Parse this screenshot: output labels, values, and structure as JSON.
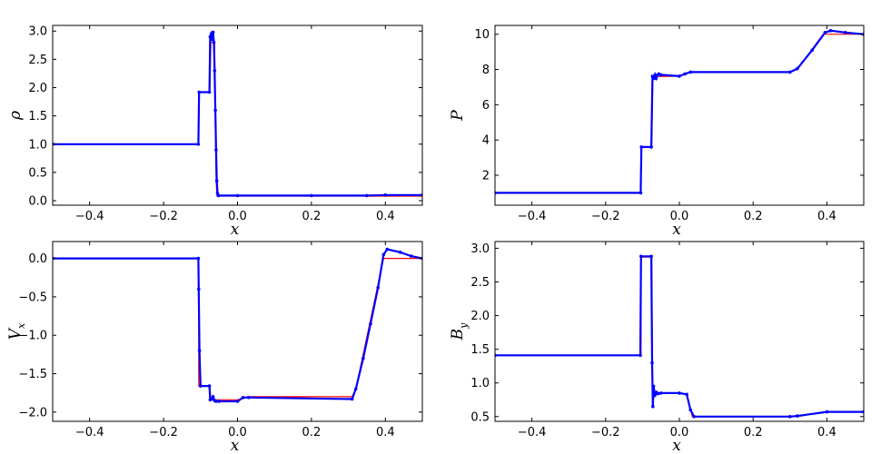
{
  "figure": {
    "background": "#ffffff"
  },
  "chart_data": [
    {
      "type": "line",
      "title": "",
      "xlabel": "x",
      "ylabel": "ρ",
      "ylabel_sub": "",
      "xlim": [
        -0.5,
        0.5
      ],
      "ylim": [
        -0.08,
        3.1
      ],
      "xticks": [
        -0.4,
        -0.2,
        0.0,
        0.2,
        0.4
      ],
      "xtick_labels": [
        "−0.4",
        "−0.2",
        "0.0",
        "0.2",
        "0.4"
      ],
      "yticks": [
        0.0,
        0.5,
        1.0,
        1.5,
        2.0,
        2.5,
        3.0
      ],
      "ytick_labels": [
        "0.0",
        "0.5",
        "1.0",
        "1.5",
        "2.0",
        "2.5",
        "3.0"
      ],
      "grid": false,
      "series": [
        {
          "color": "#ff0000",
          "style": "line",
          "x": [
            -0.5,
            -0.105,
            -0.105,
            -0.075,
            -0.072,
            -0.066,
            -0.062,
            -0.06,
            -0.058,
            -0.056,
            -0.055,
            0.5
          ],
          "y": [
            1.0,
            1.0,
            1.92,
            1.92,
            2.8,
            2.8,
            2.8,
            1.5,
            0.4,
            0.12,
            0.08,
            0.08
          ]
        },
        {
          "color": "#0000ff",
          "style": "markers+line",
          "x": [
            -0.5,
            -0.106,
            -0.104,
            -0.076,
            -0.074,
            -0.071,
            -0.068,
            -0.066,
            -0.064,
            -0.062,
            -0.06,
            -0.058,
            -0.056,
            -0.054,
            -0.052,
            0.0,
            0.2,
            0.35,
            0.4,
            0.5
          ],
          "y": [
            1.0,
            1.0,
            1.92,
            1.92,
            2.9,
            2.95,
            2.85,
            2.98,
            2.8,
            2.3,
            1.6,
            0.9,
            0.35,
            0.13,
            0.09,
            0.09,
            0.09,
            0.09,
            0.1,
            0.1
          ]
        }
      ]
    },
    {
      "type": "line",
      "title": "",
      "xlabel": "x",
      "ylabel": "P",
      "ylabel_sub": "",
      "xlim": [
        -0.5,
        0.5
      ],
      "ylim": [
        0.3,
        10.5
      ],
      "xticks": [
        -0.4,
        -0.2,
        0.0,
        0.2,
        0.4
      ],
      "xtick_labels": [
        "−0.4",
        "−0.2",
        "0.0",
        "0.2",
        "0.4"
      ],
      "yticks": [
        2,
        4,
        6,
        8,
        10
      ],
      "ytick_labels": [
        "2",
        "4",
        "6",
        "8",
        "10"
      ],
      "grid": false,
      "series": [
        {
          "color": "#ff0000",
          "style": "line",
          "x": [
            -0.5,
            -0.104,
            -0.104,
            -0.075,
            -0.072,
            -0.065,
            -0.055,
            0.0,
            0.015,
            0.03,
            0.3,
            0.32,
            0.39,
            0.5
          ],
          "y": [
            1.0,
            1.0,
            3.6,
            3.6,
            7.6,
            7.6,
            7.6,
            7.62,
            7.75,
            7.85,
            7.85,
            8.0,
            10.0,
            10.0
          ]
        },
        {
          "color": "#0000ff",
          "style": "markers+line",
          "x": [
            -0.5,
            -0.105,
            -0.103,
            -0.076,
            -0.073,
            -0.069,
            -0.066,
            -0.063,
            -0.06,
            -0.056,
            -0.05,
            0.0,
            0.015,
            0.03,
            0.3,
            0.32,
            0.36,
            0.395,
            0.41,
            0.45,
            0.5
          ],
          "y": [
            1.0,
            1.0,
            3.6,
            3.6,
            7.6,
            7.5,
            7.7,
            7.5,
            7.65,
            7.75,
            7.7,
            7.62,
            7.75,
            7.85,
            7.85,
            8.05,
            9.1,
            10.1,
            10.2,
            10.1,
            10.0
          ]
        }
      ]
    },
    {
      "type": "line",
      "title": "",
      "xlabel": "x",
      "ylabel": "V",
      "ylabel_sub": "x",
      "xlim": [
        -0.5,
        0.5
      ],
      "ylim": [
        -2.12,
        0.22
      ],
      "xticks": [
        -0.4,
        -0.2,
        0.0,
        0.2,
        0.4
      ],
      "xtick_labels": [
        "−0.4",
        "−0.2",
        "0.0",
        "0.2",
        "0.4"
      ],
      "yticks": [
        0.0,
        -0.5,
        -1.0,
        -1.5,
        -2.0
      ],
      "ytick_labels": [
        "0.0",
        "−0.5",
        "−1.0",
        "−1.5",
        "−2.0"
      ],
      "grid": false,
      "series": [
        {
          "color": "#ff0000",
          "style": "line",
          "x": [
            -0.5,
            -0.105,
            -0.105,
            -0.075,
            -0.072,
            -0.055,
            0.0,
            0.015,
            0.03,
            0.31,
            0.32,
            0.395,
            0.5
          ],
          "y": [
            0.0,
            0.0,
            -1.66,
            -1.66,
            -1.84,
            -1.84,
            -1.84,
            -1.82,
            -1.8,
            -1.8,
            -1.7,
            0.0,
            0.0
          ]
        },
        {
          "color": "#0000ff",
          "style": "markers+line",
          "x": [
            -0.5,
            -0.106,
            -0.105,
            -0.103,
            -0.1,
            -0.076,
            -0.074,
            -0.07,
            -0.066,
            -0.062,
            -0.058,
            -0.05,
            0.0,
            0.015,
            0.03,
            0.31,
            0.32,
            0.34,
            0.36,
            0.38,
            0.395,
            0.405,
            0.44,
            0.47,
            0.5
          ],
          "y": [
            0.0,
            0.0,
            -0.4,
            -1.2,
            -1.66,
            -1.66,
            -1.84,
            -1.83,
            -1.8,
            -1.85,
            -1.86,
            -1.86,
            -1.86,
            -1.81,
            -1.81,
            -1.83,
            -1.7,
            -1.3,
            -0.85,
            -0.38,
            0.05,
            0.12,
            0.08,
            0.03,
            0.0
          ]
        }
      ]
    },
    {
      "type": "line",
      "title": "",
      "xlabel": "x",
      "ylabel": "B",
      "ylabel_sub": "y",
      "xlim": [
        -0.5,
        0.5
      ],
      "ylim": [
        0.43,
        3.1
      ],
      "xticks": [
        -0.4,
        -0.2,
        0.0,
        0.2,
        0.4
      ],
      "xtick_labels": [
        "−0.4",
        "−0.2",
        "0.0",
        "0.2",
        "0.4"
      ],
      "yticks": [
        0.5,
        1.0,
        1.5,
        2.0,
        2.5,
        3.0
      ],
      "ytick_labels": [
        "0.5",
        "1.0",
        "1.5",
        "2.0",
        "2.5",
        "3.0"
      ],
      "grid": false,
      "series": [
        {
          "color": "#ff0000",
          "style": "line",
          "x": [
            -0.5,
            -0.104,
            -0.104,
            -0.075,
            -0.073,
            -0.066,
            -0.06,
            0.0,
            0.02,
            0.035,
            0.3,
            0.32,
            0.39,
            0.5
          ],
          "y": [
            1.41,
            1.41,
            2.87,
            2.87,
            0.85,
            0.85,
            0.85,
            0.85,
            0.83,
            0.5,
            0.5,
            0.5,
            0.57,
            0.57
          ]
        },
        {
          "color": "#0000ff",
          "style": "markers+line",
          "x": [
            -0.5,
            -0.106,
            -0.104,
            -0.076,
            -0.074,
            -0.072,
            -0.07,
            -0.066,
            -0.062,
            -0.058,
            -0.05,
            0.0,
            0.02,
            0.03,
            0.04,
            0.3,
            0.32,
            0.4,
            0.5
          ],
          "y": [
            1.41,
            1.41,
            2.88,
            2.88,
            1.3,
            0.65,
            0.95,
            0.82,
            0.86,
            0.84,
            0.85,
            0.85,
            0.83,
            0.6,
            0.5,
            0.5,
            0.51,
            0.57,
            0.57
          ]
        }
      ]
    }
  ]
}
